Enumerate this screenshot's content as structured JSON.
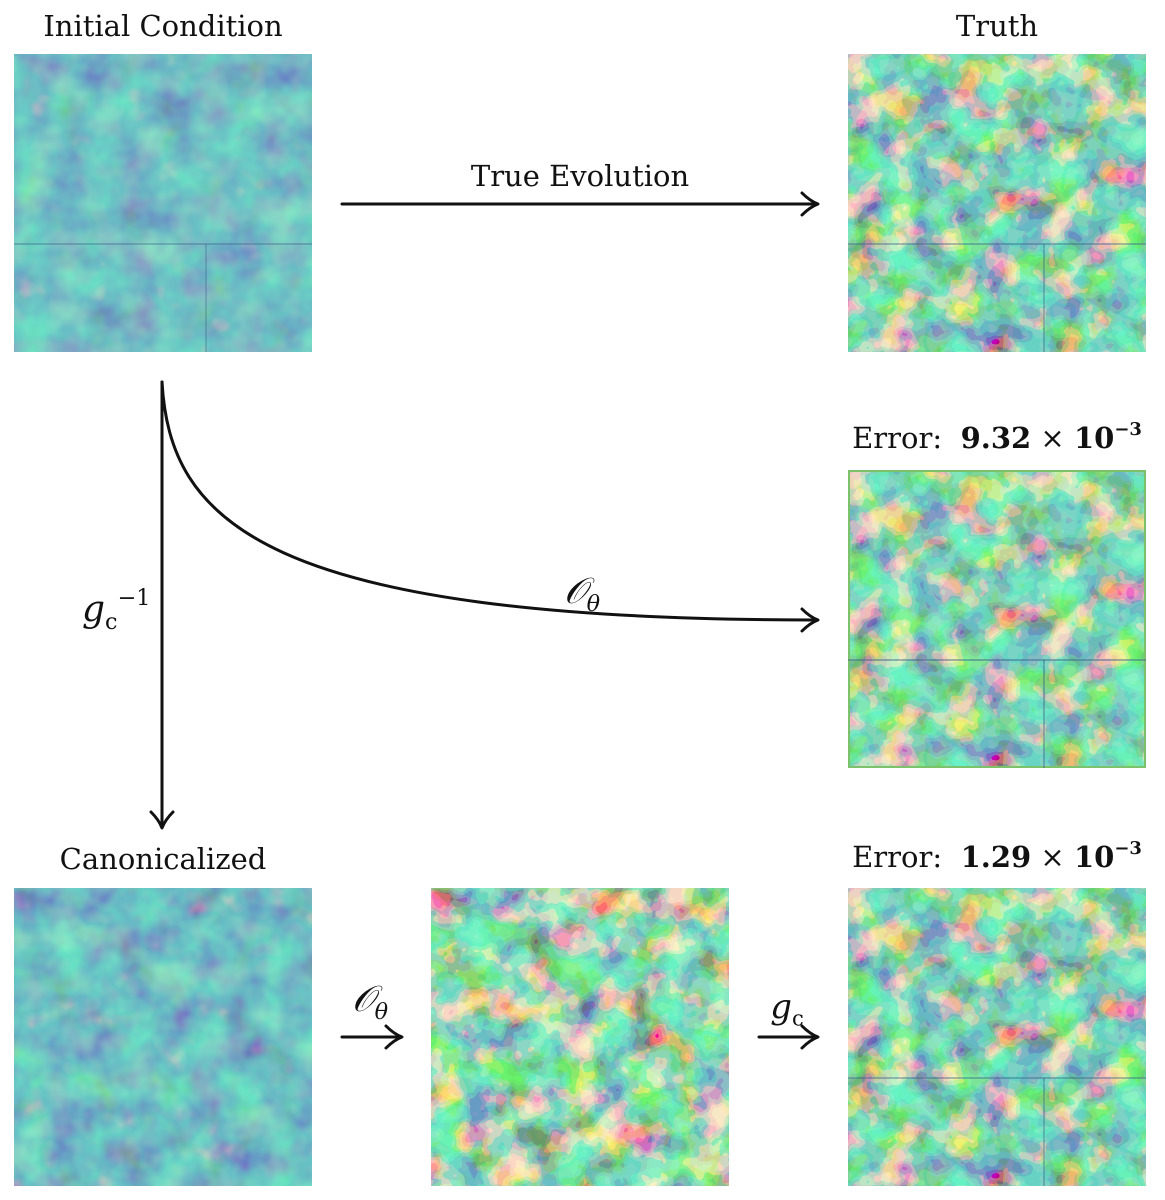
{
  "panels": {
    "initial": {
      "title": "Initial Condition"
    },
    "truth": {
      "title": "Truth"
    },
    "direct": {
      "error_label": "Error:",
      "error_mantissa": "9.32",
      "error_exponent": "−3"
    },
    "canonicalized": {
      "title": "Canonicalized"
    },
    "intermediate": {
      "title": ""
    },
    "final": {
      "error_label": "Error:",
      "error_mantissa": "1.29",
      "error_exponent": "−3"
    }
  },
  "arrows": {
    "true_evolution": "True Evolution",
    "operator": "𝒪",
    "operator_sub": "θ",
    "inverse_g": "g",
    "inverse_g_sub": "c",
    "inverse_g_sup": "−1",
    "g": "g",
    "g_sub": "c"
  },
  "symbols": {
    "times": "×",
    "ten": "10"
  },
  "colors": {
    "viridis_dark": "#440154",
    "viridis_mid": "#21918c",
    "viridis_light": "#fde725"
  }
}
